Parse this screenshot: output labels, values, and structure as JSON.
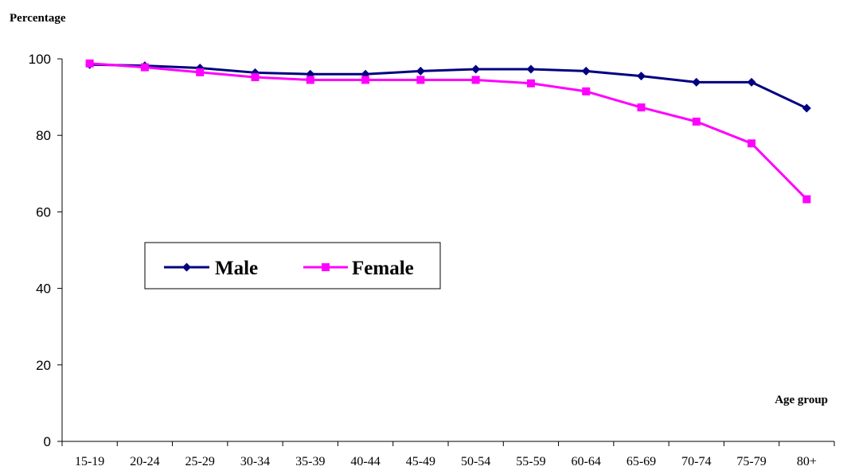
{
  "chart_data": {
    "type": "line",
    "ylabel": "Percentage",
    "xlabel": "Age group",
    "categories": [
      "15-19",
      "20-24",
      "25-29",
      "30-34",
      "35-39",
      "40-44",
      "45-49",
      "50-54",
      "55-59",
      "60-64",
      "65-69",
      "70-74",
      "75-79",
      "80+"
    ],
    "ylim": [
      0,
      100
    ],
    "yticks": [
      "0",
      "20",
      "40",
      "60",
      "80",
      "100"
    ],
    "grid": false,
    "legend_position": "left-center",
    "series": [
      {
        "name": "Male",
        "color": "#000080",
        "marker": "diamond",
        "values": [
          98.5,
          98.2,
          97.6,
          96.4,
          96.0,
          96.0,
          96.8,
          97.3,
          97.3,
          96.8,
          95.5,
          93.9,
          93.9,
          87.1
        ]
      },
      {
        "name": "Female",
        "color": "#FF00FF",
        "marker": "square",
        "values": [
          98.8,
          97.8,
          96.5,
          95.2,
          94.5,
          94.5,
          94.5,
          94.5,
          93.6,
          91.5,
          87.3,
          83.6,
          77.9,
          63.3
        ]
      }
    ]
  }
}
